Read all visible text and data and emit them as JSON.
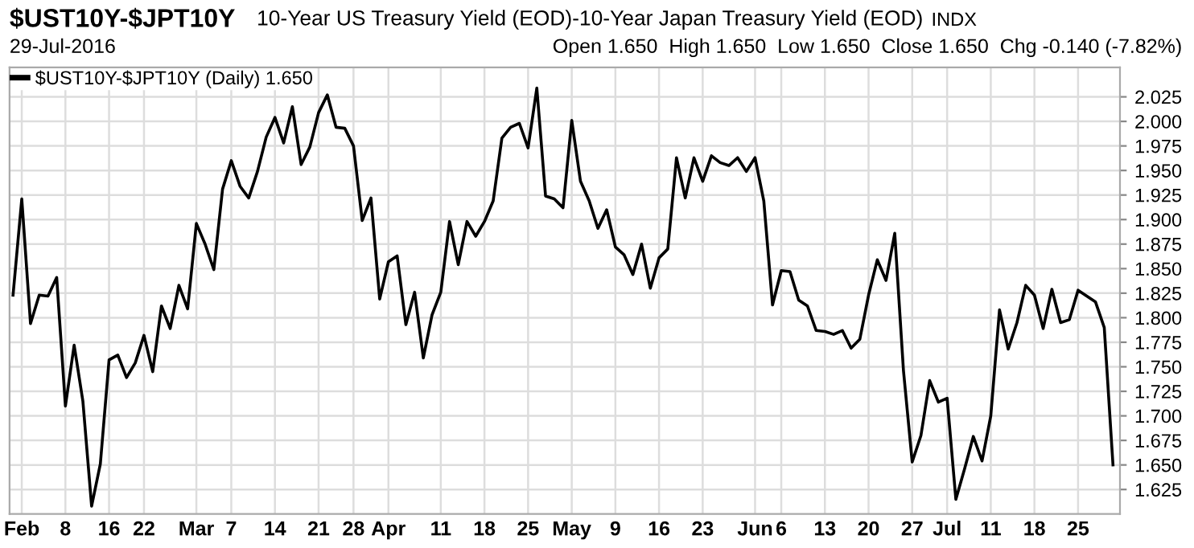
{
  "chart_data": {
    "type": "line",
    "title": "$UST10Y-$JPT10Y",
    "subtitle": "10-Year US Treasury Yield (EOD)-10-Year Japan Treasury Yield (EOD)",
    "annotations": [
      "INDX",
      "29-Jul-2016",
      "Open 1.650  High 1.650  Low 1.650  Close 1.650  Chg -0.140 (-7.82%)"
    ],
    "categories": [
      null,
      "Feb",
      null,
      null,
      null,
      null,
      "8",
      null,
      null,
      null,
      null,
      "16",
      null,
      null,
      null,
      "22",
      null,
      null,
      null,
      null,
      null,
      "Mar",
      null,
      null,
      null,
      "7",
      null,
      null,
      null,
      null,
      "14",
      null,
      null,
      null,
      null,
      "21",
      null,
      null,
      null,
      "28",
      null,
      null,
      null,
      "Apr",
      null,
      null,
      null,
      null,
      null,
      "11",
      null,
      null,
      null,
      null,
      "18",
      null,
      null,
      null,
      null,
      "25",
      null,
      null,
      null,
      null,
      "May",
      null,
      null,
      null,
      null,
      "9",
      null,
      null,
      null,
      null,
      "16",
      null,
      null,
      null,
      null,
      "23",
      null,
      null,
      null,
      null,
      null,
      "Jun",
      null,
      null,
      "6",
      null,
      null,
      null,
      null,
      "13",
      null,
      null,
      null,
      null,
      "20",
      null,
      null,
      null,
      null,
      "27",
      null,
      null,
      null,
      "Jul",
      null,
      null,
      null,
      null,
      "11",
      null,
      null,
      null,
      null,
      "18",
      null,
      null,
      null,
      null,
      "25",
      null,
      null,
      null,
      null
    ],
    "series": [
      {
        "name": "$UST10Y-$JPT10Y (Daily) 1.650",
        "color": "#000000",
        "values": [
          1.823,
          1.921,
          1.794,
          1.823,
          1.822,
          1.841,
          1.71,
          1.772,
          1.715,
          1.608,
          1.651,
          1.757,
          1.762,
          1.739,
          1.754,
          1.782,
          1.745,
          1.812,
          1.789,
          1.833,
          1.809,
          1.896,
          1.875,
          1.849,
          1.931,
          1.96,
          1.934,
          1.922,
          1.949,
          1.984,
          2.004,
          1.978,
          2.015,
          1.956,
          1.974,
          2.009,
          2.027,
          1.994,
          1.993,
          1.975,
          1.899,
          1.922,
          1.819,
          1.857,
          1.863,
          1.793,
          1.826,
          1.759,
          1.803,
          1.826,
          1.898,
          1.854,
          1.898,
          1.883,
          1.898,
          1.919,
          1.983,
          1.994,
          1.998,
          1.973,
          2.034,
          1.924,
          1.921,
          1.912,
          2.001,
          1.939,
          1.919,
          1.891,
          1.91,
          1.872,
          1.864,
          1.844,
          1.875,
          1.83,
          1.861,
          1.87,
          1.963,
          1.922,
          1.963,
          1.939,
          1.965,
          1.958,
          1.955,
          1.963,
          1.949,
          1.963,
          1.919,
          1.813,
          1.848,
          1.847,
          1.818,
          1.812,
          1.787,
          1.786,
          1.783,
          1.787,
          1.769,
          1.778,
          1.823,
          1.859,
          1.838,
          1.886,
          1.746,
          1.653,
          1.68,
          1.736,
          1.714,
          1.718,
          1.615,
          1.646,
          1.679,
          1.654,
          1.7,
          1.808,
          1.768,
          1.795,
          1.833,
          1.823,
          1.789,
          1.829,
          1.795,
          1.798,
          1.828,
          1.822,
          1.816,
          1.79,
          1.65
        ]
      }
    ],
    "ylim": [
      1.6,
      2.055
    ],
    "yticks": [
      1.625,
      {
        "value": 1.65,
        "label": "1.650"
      },
      1.675,
      {
        "value": 1.7,
        "label": "1.700"
      },
      1.725,
      {
        "value": 1.75,
        "label": "1.750"
      },
      1.775,
      {
        "value": 1.8,
        "label": "1.800"
      },
      1.825,
      {
        "value": 1.85,
        "label": "1.850"
      },
      1.875,
      {
        "value": 1.9,
        "label": "1.900"
      },
      1.925,
      {
        "value": 1.95,
        "label": "1.950"
      },
      1.975,
      {
        "value": 2.0,
        "label": "2.000"
      },
      2.025
    ],
    "grid": true,
    "legend": "top left",
    "marker": "none",
    "line_style": "solid"
  }
}
